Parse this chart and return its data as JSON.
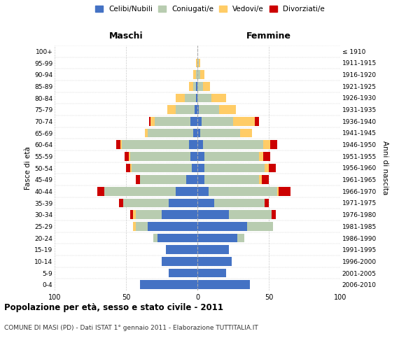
{
  "age_groups": [
    "0-4",
    "5-9",
    "10-14",
    "15-19",
    "20-24",
    "25-29",
    "30-34",
    "35-39",
    "40-44",
    "45-49",
    "50-54",
    "55-59",
    "60-64",
    "65-69",
    "70-74",
    "75-79",
    "80-84",
    "85-89",
    "90-94",
    "95-99",
    "100+"
  ],
  "birth_years": [
    "2006-2010",
    "2001-2005",
    "1996-2000",
    "1991-1995",
    "1986-1990",
    "1981-1985",
    "1976-1980",
    "1971-1975",
    "1966-1970",
    "1961-1965",
    "1956-1960",
    "1951-1955",
    "1946-1950",
    "1941-1945",
    "1936-1940",
    "1931-1935",
    "1926-1930",
    "1921-1925",
    "1916-1920",
    "1911-1915",
    "≤ 1910"
  ],
  "colors": {
    "celibi": "#4472C4",
    "coniugati": "#B8CCB0",
    "vedovi": "#FFCC66",
    "divorziati": "#CC0000"
  },
  "maschi": {
    "celibi": [
      40,
      20,
      25,
      22,
      28,
      35,
      25,
      20,
      15,
      8,
      4,
      5,
      6,
      3,
      5,
      2,
      1,
      1,
      0,
      0,
      0
    ],
    "coniugati": [
      0,
      0,
      0,
      0,
      3,
      8,
      18,
      32,
      50,
      32,
      42,
      42,
      47,
      32,
      25,
      13,
      8,
      2,
      1,
      0,
      0
    ],
    "vedovi": [
      0,
      0,
      0,
      0,
      0,
      2,
      2,
      0,
      0,
      0,
      1,
      1,
      1,
      2,
      3,
      6,
      6,
      3,
      2,
      1,
      0
    ],
    "divorziati": [
      0,
      0,
      0,
      0,
      0,
      0,
      2,
      3,
      5,
      3,
      3,
      3,
      3,
      0,
      1,
      0,
      0,
      0,
      0,
      0,
      0
    ]
  },
  "femmine": {
    "celibi": [
      37,
      20,
      24,
      22,
      28,
      35,
      22,
      12,
      8,
      5,
      5,
      5,
      4,
      2,
      3,
      1,
      0,
      0,
      0,
      0,
      0
    ],
    "coniugati": [
      0,
      0,
      0,
      0,
      5,
      18,
      30,
      35,
      48,
      38,
      42,
      38,
      42,
      28,
      22,
      14,
      10,
      4,
      2,
      1,
      0
    ],
    "vedovi": [
      0,
      0,
      0,
      0,
      0,
      0,
      0,
      0,
      1,
      2,
      3,
      3,
      5,
      8,
      15,
      12,
      10,
      5,
      3,
      1,
      0
    ],
    "divorziati": [
      0,
      0,
      0,
      0,
      0,
      0,
      3,
      3,
      8,
      5,
      5,
      5,
      5,
      0,
      3,
      0,
      0,
      0,
      0,
      0,
      0
    ]
  },
  "xlim": 100,
  "title": "Popolazione per età, sesso e stato civile - 2011",
  "subtitle": "COMUNE DI MASI (PD) - Dati ISTAT 1° gennaio 2011 - Elaborazione TUTTITALIA.IT",
  "ylabel_left": "Fasce di età",
  "ylabel_right": "Anni di nascita",
  "xlabel_maschi": "Maschi",
  "xlabel_femmine": "Femmine",
  "legend_labels": [
    "Celibi/Nubili",
    "Coniugati/e",
    "Vedovi/e",
    "Divorziati/e"
  ],
  "bg_color": "#FFFFFF",
  "bar_height": 0.75,
  "gridcolor": "#CCCCCC"
}
